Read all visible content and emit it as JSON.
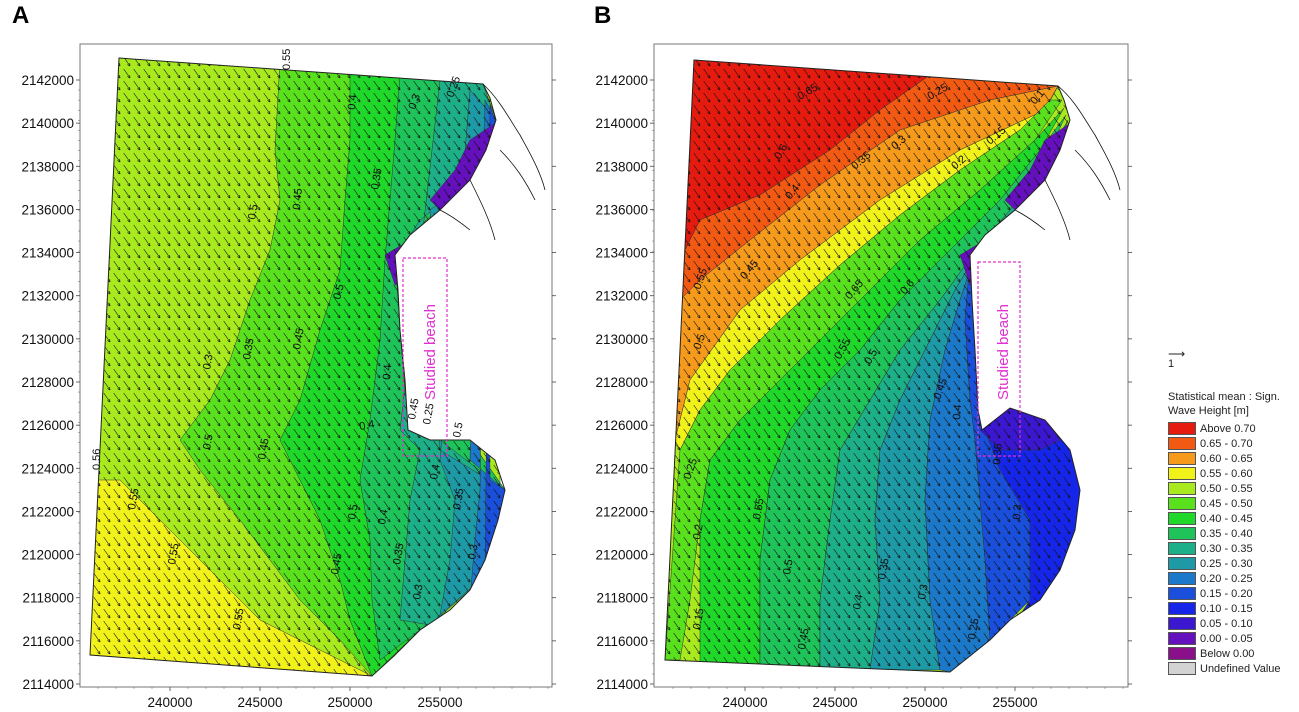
{
  "panels": [
    {
      "letter": "A",
      "y_ticks": [
        "2142000",
        "2140000",
        "2138000",
        "2136000",
        "2134000",
        "2132000",
        "2130000",
        "2128000",
        "2126000",
        "2124000",
        "2122000",
        "2120000",
        "2118000",
        "2116000",
        "2114000"
      ],
      "x_ticks": [
        "240000",
        "245000",
        "250000",
        "255000"
      ],
      "annotation": "Studied beach",
      "contour_labels": [
        "0.55",
        "0.5",
        "0.45",
        "0.4",
        "0.35",
        "0.3",
        "0.25",
        "0.5",
        "0.45",
        "0.4",
        "0.35",
        "0.3",
        "0.5",
        "0.45",
        "0.4",
        "0.55",
        "0.55",
        "0.55",
        "0.56",
        "0.5",
        "0.45",
        "0.4",
        "0.35",
        "0.3",
        "0.25",
        "0.5",
        "0.45",
        "0.4",
        "0.35",
        "0.3"
      ]
    },
    {
      "letter": "B",
      "y_ticks": [
        "2142000",
        "2140000",
        "2138000",
        "2136000",
        "2134000",
        "2132000",
        "2130000",
        "2128000",
        "2126000",
        "2124000",
        "2122000",
        "2120000",
        "2118000",
        "2116000",
        "2114000"
      ],
      "x_ticks": [
        "240000",
        "245000",
        "250000",
        "255000"
      ],
      "annotation": "Studied beach",
      "contour_labels": [
        "0.6",
        "0.65",
        "0.55",
        "0.5",
        "0.45",
        "0.4",
        "0.35",
        "0.3",
        "0.25",
        "0.2",
        "0.15",
        "0.1",
        "0.65",
        "0.6",
        "0.55",
        "0.5",
        "0.45",
        "0.4",
        "0.35",
        "0.3",
        "0.25",
        "0.2",
        "0.15",
        "0.55",
        "0.5",
        "0.45",
        "0.4",
        "0.35",
        "0.3",
        "0.25"
      ]
    }
  ],
  "chart_data": {
    "type": "heatmap",
    "variable": "Statistical mean : Sign. Wave Height [m]",
    "x_range": [
      236000,
      258000
    ],
    "y_range": [
      2114000,
      2144000
    ],
    "study_area": "Studied beach",
    "legend": {
      "scale_vector": "1",
      "title_line1": "Statistical mean : Sign.",
      "title_line2": "Wave Height [m]",
      "classes": [
        {
          "label": "Above 0.70",
          "color": "#e61b0f"
        },
        {
          "label": "0.65 - 0.70",
          "color": "#f25a14"
        },
        {
          "label": "0.60 - 0.65",
          "color": "#f59a1b"
        },
        {
          "label": "0.55 - 0.60",
          "color": "#f2f21b"
        },
        {
          "label": "0.50 - 0.55",
          "color": "#a9ea1e"
        },
        {
          "label": "0.45 - 0.50",
          "color": "#5ae11e"
        },
        {
          "label": "0.40 - 0.45",
          "color": "#1fd829"
        },
        {
          "label": "0.35 - 0.40",
          "color": "#1ec45a"
        },
        {
          "label": "0.30 - 0.35",
          "color": "#1daf87"
        },
        {
          "label": "0.25 - 0.30",
          "color": "#1d9aa6"
        },
        {
          "label": "0.20 - 0.25",
          "color": "#1c78c8"
        },
        {
          "label": "0.15 - 0.20",
          "color": "#1a4fdc"
        },
        {
          "label": "0.10 - 0.15",
          "color": "#1626e8"
        },
        {
          "label": "0.05 - 0.10",
          "color": "#3b17d0"
        },
        {
          "label": "0.00 - 0.05",
          "color": "#6410bc"
        },
        {
          "label": "Below 0.00",
          "color": "#8a0f8a"
        },
        {
          "label": "Undefined Value",
          "color": "#d3d3d3"
        }
      ]
    }
  }
}
